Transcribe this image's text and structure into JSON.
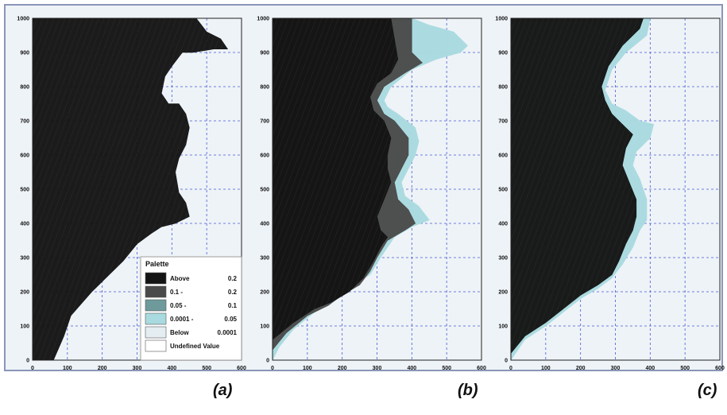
{
  "panel_labels": [
    "(a)",
    "(b)",
    "(c)"
  ],
  "legend": {
    "title": "Palette",
    "entries": [
      {
        "label": "Above",
        "value": "0.2",
        "color": "#141414"
      },
      {
        "label": "0.1 -",
        "value": "0.2",
        "color": "#4a4a4a"
      },
      {
        "label": "0.05 -",
        "value": "0.1",
        "color": "#6e9a9c"
      },
      {
        "label": "0.0001 -",
        "value": "0.05",
        "color": "#a8dadf"
      },
      {
        "label": "Below",
        "value": "0.0001",
        "color": "#e4eef2"
      },
      {
        "label": "Undefined Value",
        "value": "",
        "color": "#ffffff"
      }
    ]
  },
  "colors": {
    "background": "#eef3f7",
    "grid": "#4a5ad6",
    "dark": "#141414",
    "mid": "#4a4a4a",
    "light": "#a8dadf"
  },
  "chart_data": [
    {
      "type": "heatmap",
      "panel": "(a)",
      "xlim": [
        0,
        600
      ],
      "ylim": [
        0,
        1000
      ],
      "xticks": [
        "0",
        "100",
        "200",
        "300",
        "400",
        "500",
        "600"
      ],
      "yticks": [
        "0",
        "100",
        "200",
        "300",
        "400",
        "500",
        "600",
        "700",
        "800",
        "900",
        "1000"
      ],
      "grid": true,
      "legend_position": "bottom-right",
      "regions": [
        {
          "class": "Above 0.2",
          "boundary": [
            [
              0,
              0
            ],
            [
              60,
              0
            ],
            [
              90,
              70
            ],
            [
              110,
              130
            ],
            [
              170,
              200
            ],
            [
              210,
              240
            ],
            [
              260,
              290
            ],
            [
              300,
              340
            ],
            [
              340,
              370
            ],
            [
              370,
              390
            ],
            [
              410,
              400
            ],
            [
              450,
              420
            ],
            [
              440,
              460
            ],
            [
              420,
              490
            ],
            [
              410,
              550
            ],
            [
              420,
              590
            ],
            [
              440,
              630
            ],
            [
              450,
              680
            ],
            [
              440,
              720
            ],
            [
              420,
              750
            ],
            [
              390,
              750
            ],
            [
              370,
              780
            ],
            [
              380,
              830
            ],
            [
              400,
              860
            ],
            [
              430,
              900
            ],
            [
              460,
              900
            ],
            [
              520,
              910
            ],
            [
              560,
              910
            ],
            [
              540,
              940
            ],
            [
              500,
              960
            ],
            [
              470,
              1000
            ],
            [
              0,
              1000
            ]
          ]
        }
      ]
    },
    {
      "type": "heatmap",
      "panel": "(b)",
      "xlim": [
        0,
        600
      ],
      "ylim": [
        0,
        1000
      ],
      "xticks": [
        "0",
        "100",
        "200",
        "300",
        "400",
        "500",
        "600"
      ],
      "yticks": [
        "0",
        "100",
        "200",
        "300",
        "400",
        "500",
        "600",
        "700",
        "800",
        "900",
        "1000"
      ],
      "grid": true,
      "regions": [
        {
          "class": "0.0001 - 0.05",
          "boundary": [
            [
              0,
              0
            ],
            [
              20,
              40
            ],
            [
              60,
              90
            ],
            [
              120,
              140
            ],
            [
              180,
              180
            ],
            [
              230,
              220
            ],
            [
              280,
              250
            ],
            [
              310,
              300
            ],
            [
              350,
              360
            ],
            [
              400,
              390
            ],
            [
              450,
              410
            ],
            [
              420,
              450
            ],
            [
              380,
              480
            ],
            [
              370,
              520
            ],
            [
              390,
              560
            ],
            [
              410,
              600
            ],
            [
              420,
              640
            ],
            [
              410,
              680
            ],
            [
              360,
              720
            ],
            [
              330,
              740
            ],
            [
              320,
              760
            ],
            [
              340,
              800
            ],
            [
              400,
              850
            ],
            [
              470,
              880
            ],
            [
              540,
              900
            ],
            [
              560,
              920
            ],
            [
              520,
              960
            ],
            [
              450,
              980
            ],
            [
              400,
              1000
            ],
            [
              0,
              1000
            ]
          ]
        },
        {
          "class": "0.1 - 0.2",
          "boundary": [
            [
              0,
              30
            ],
            [
              40,
              80
            ],
            [
              100,
              130
            ],
            [
              160,
              160
            ],
            [
              200,
              190
            ],
            [
              250,
              220
            ],
            [
              280,
              260
            ],
            [
              300,
              300
            ],
            [
              330,
              350
            ],
            [
              380,
              380
            ],
            [
              410,
              400
            ],
            [
              390,
              440
            ],
            [
              360,
              470
            ],
            [
              350,
              520
            ],
            [
              370,
              560
            ],
            [
              390,
              600
            ],
            [
              390,
              650
            ],
            [
              350,
              700
            ],
            [
              320,
              720
            ],
            [
              300,
              760
            ],
            [
              320,
              800
            ],
            [
              380,
              840
            ],
            [
              430,
              870
            ],
            [
              400,
              900
            ],
            [
              400,
              1000
            ],
            [
              0,
              1000
            ]
          ]
        },
        {
          "class": "Above 0.2",
          "boundary": [
            [
              0,
              60
            ],
            [
              60,
              110
            ],
            [
              120,
              150
            ],
            [
              170,
              170
            ],
            [
              220,
              200
            ],
            [
              260,
              240
            ],
            [
              290,
              290
            ],
            [
              310,
              330
            ],
            [
              330,
              360
            ],
            [
              310,
              380
            ],
            [
              300,
              420
            ],
            [
              320,
              470
            ],
            [
              340,
              520
            ],
            [
              330,
              560
            ],
            [
              330,
              600
            ],
            [
              340,
              650
            ],
            [
              320,
              700
            ],
            [
              290,
              730
            ],
            [
              280,
              770
            ],
            [
              300,
              810
            ],
            [
              340,
              840
            ],
            [
              360,
              880
            ],
            [
              340,
              1000
            ],
            [
              0,
              1000
            ]
          ]
        }
      ]
    },
    {
      "type": "heatmap",
      "panel": "(c)",
      "xlim": [
        0,
        600
      ],
      "ylim": [
        0,
        1000
      ],
      "xticks": [
        "0",
        "100",
        "200",
        "300",
        "400",
        "500",
        "600"
      ],
      "yticks": [
        "0",
        "100",
        "200",
        "300",
        "400",
        "500",
        "600",
        "700",
        "800",
        "900",
        "1000"
      ],
      "grid": true,
      "regions": [
        {
          "class": "0.0001 - 0.05",
          "boundary": [
            [
              0,
              0
            ],
            [
              40,
              60
            ],
            [
              100,
              100
            ],
            [
              150,
              140
            ],
            [
              200,
              180
            ],
            [
              250,
              210
            ],
            [
              290,
              240
            ],
            [
              320,
              280
            ],
            [
              350,
              330
            ],
            [
              370,
              380
            ],
            [
              390,
              410
            ],
            [
              390,
              470
            ],
            [
              370,
              530
            ],
            [
              350,
              570
            ],
            [
              360,
              610
            ],
            [
              400,
              650
            ],
            [
              410,
              690
            ],
            [
              370,
              700
            ],
            [
              330,
              730
            ],
            [
              290,
              750
            ],
            [
              270,
              790
            ],
            [
              290,
              850
            ],
            [
              330,
              900
            ],
            [
              390,
              950
            ],
            [
              400,
              1000
            ],
            [
              0,
              1000
            ]
          ]
        },
        {
          "class": "Above 0.2",
          "boundary": [
            [
              0,
              20
            ],
            [
              40,
              70
            ],
            [
              100,
              110
            ],
            [
              150,
              150
            ],
            [
              200,
              190
            ],
            [
              250,
              220
            ],
            [
              290,
              250
            ],
            [
              310,
              290
            ],
            [
              330,
              340
            ],
            [
              350,
              380
            ],
            [
              360,
              420
            ],
            [
              360,
              470
            ],
            [
              340,
              520
            ],
            [
              320,
              570
            ],
            [
              330,
              620
            ],
            [
              350,
              660
            ],
            [
              320,
              690
            ],
            [
              290,
              720
            ],
            [
              270,
              760
            ],
            [
              260,
              800
            ],
            [
              280,
              860
            ],
            [
              320,
              920
            ],
            [
              370,
              970
            ],
            [
              380,
              1000
            ],
            [
              0,
              1000
            ]
          ]
        }
      ]
    }
  ]
}
